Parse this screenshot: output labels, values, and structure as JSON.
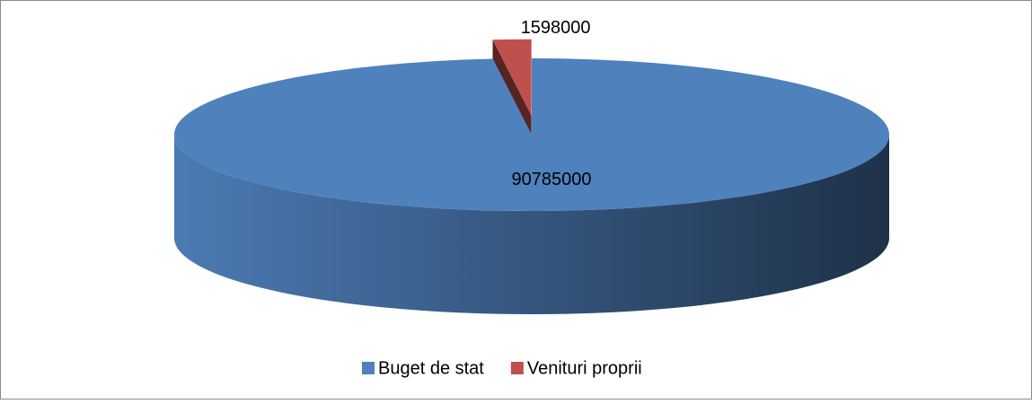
{
  "chart_data": {
    "type": "pie",
    "categories": [
      "Buget de stat",
      "Venituri proprii"
    ],
    "values": [
      90785000,
      1598000
    ],
    "colors": [
      "#4f81bd",
      "#c0504d"
    ],
    "legend": "bottom"
  }
}
